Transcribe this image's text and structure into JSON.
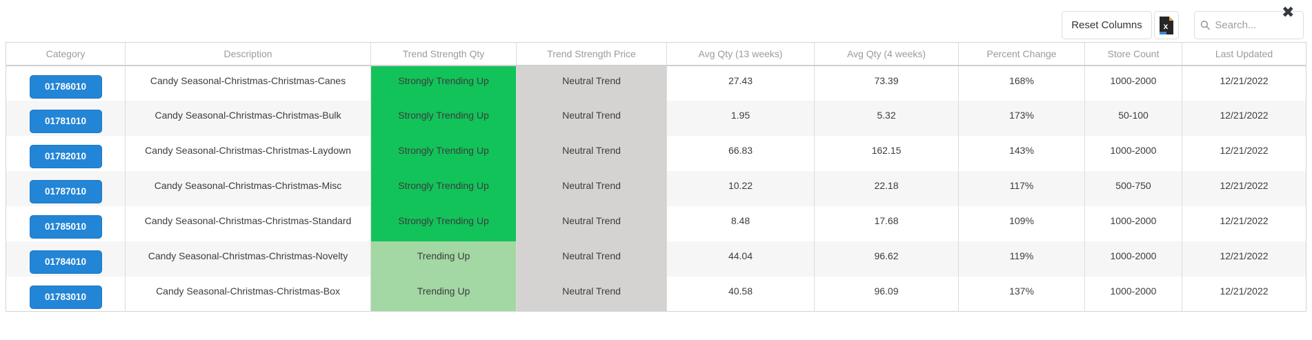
{
  "toolbar": {
    "reset_columns_label": "Reset Columns",
    "excel_icon_letter": "x",
    "search_placeholder": "Search...",
    "close_glyph": "✖"
  },
  "colors": {
    "primary_blue": "#2385d6",
    "strong_green": "#12c35a",
    "light_green": "#a3d7a3",
    "neutral_gray": "#d4d3d1",
    "stripe": "#f6f6f6"
  },
  "table": {
    "columns": [
      "Category",
      "Description",
      "Trend Strength Qty",
      "Trend Strength Price",
      "Avg Qty (13 weeks)",
      "Avg Qty (4 weeks)",
      "Percent Change",
      "Store Count",
      "Last Updated"
    ],
    "rows": [
      {
        "category": "01786010",
        "description": "Candy Seasonal-Christmas-Christmas-Canes",
        "trend_qty": "Strongly Trending Up",
        "trend_qty_level": "strong",
        "trend_price": "Neutral Trend",
        "avg_qty_13": "27.43",
        "avg_qty_4": "73.39",
        "percent_change": "168%",
        "store_count": "1000-2000",
        "last_updated": "12/21/2022"
      },
      {
        "category": "01781010",
        "description": "Candy Seasonal-Christmas-Christmas-Bulk",
        "trend_qty": "Strongly Trending Up",
        "trend_qty_level": "strong",
        "trend_price": "Neutral Trend",
        "avg_qty_13": "1.95",
        "avg_qty_4": "5.32",
        "percent_change": "173%",
        "store_count": "50-100",
        "last_updated": "12/21/2022"
      },
      {
        "category": "01782010",
        "description": "Candy Seasonal-Christmas-Christmas-Laydown",
        "trend_qty": "Strongly Trending Up",
        "trend_qty_level": "strong",
        "trend_price": "Neutral Trend",
        "avg_qty_13": "66.83",
        "avg_qty_4": "162.15",
        "percent_change": "143%",
        "store_count": "1000-2000",
        "last_updated": "12/21/2022"
      },
      {
        "category": "01787010",
        "description": "Candy Seasonal-Christmas-Christmas-Misc",
        "trend_qty": "Strongly Trending Up",
        "trend_qty_level": "strong",
        "trend_price": "Neutral Trend",
        "avg_qty_13": "10.22",
        "avg_qty_4": "22.18",
        "percent_change": "117%",
        "store_count": "500-750",
        "last_updated": "12/21/2022"
      },
      {
        "category": "01785010",
        "description": "Candy Seasonal-Christmas-Christmas-Standard",
        "trend_qty": "Strongly Trending Up",
        "trend_qty_level": "strong",
        "trend_price": "Neutral Trend",
        "avg_qty_13": "8.48",
        "avg_qty_4": "17.68",
        "percent_change": "109%",
        "store_count": "1000-2000",
        "last_updated": "12/21/2022"
      },
      {
        "category": "01784010",
        "description": "Candy Seasonal-Christmas-Christmas-Novelty",
        "trend_qty": "Trending Up",
        "trend_qty_level": "up",
        "trend_price": "Neutral Trend",
        "avg_qty_13": "44.04",
        "avg_qty_4": "96.62",
        "percent_change": "119%",
        "store_count": "1000-2000",
        "last_updated": "12/21/2022"
      },
      {
        "category": "01783010",
        "description": "Candy Seasonal-Christmas-Christmas-Box",
        "trend_qty": "Trending Up",
        "trend_qty_level": "up",
        "trend_price": "Neutral Trend",
        "avg_qty_13": "40.58",
        "avg_qty_4": "96.09",
        "percent_change": "137%",
        "store_count": "1000-2000",
        "last_updated": "12/21/2022"
      }
    ]
  }
}
